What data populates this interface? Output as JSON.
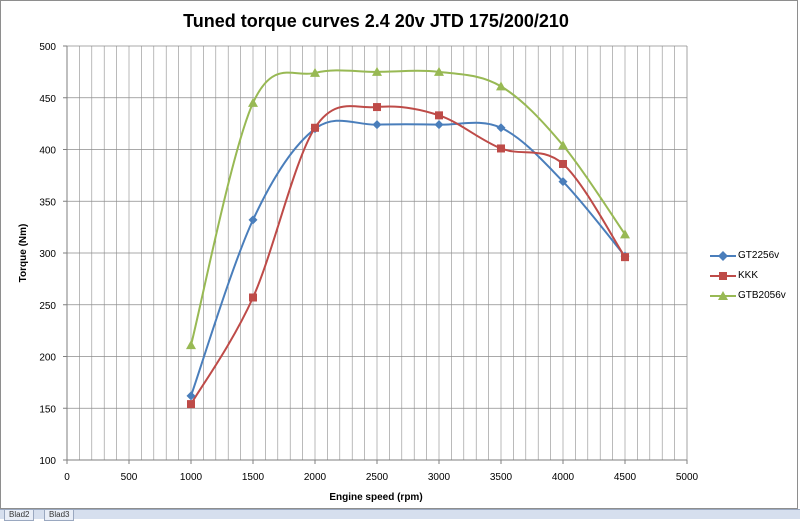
{
  "chart_data": {
    "type": "line",
    "title": "Tuned torque curves 2.4 20v JTD 175/200/210",
    "xlabel": "Engine speed (rpm)",
    "ylabel": "Torque (Nm)",
    "xlim": [
      0,
      5000
    ],
    "ylim": [
      100,
      500
    ],
    "x_ticks": [
      0,
      500,
      1000,
      1500,
      2000,
      2500,
      3000,
      3500,
      4000,
      4500,
      5000
    ],
    "y_ticks": [
      100,
      150,
      200,
      250,
      300,
      350,
      400,
      450,
      500
    ],
    "grid": true,
    "legend_position": "right",
    "series": [
      {
        "name": "GT2256v",
        "color": "#4a7ebb",
        "marker": "diamond",
        "x": [
          1000,
          1500,
          2000,
          2500,
          3000,
          3500,
          4000,
          4500
        ],
        "y": [
          162,
          332,
          420,
          424,
          424,
          421,
          369,
          297
        ]
      },
      {
        "name": "KKK",
        "color": "#be4b48",
        "marker": "square",
        "x": [
          1000,
          1500,
          2000,
          2500,
          3000,
          3500,
          4000,
          4500
        ],
        "y": [
          154,
          257,
          421,
          441,
          433,
          401,
          386,
          296
        ]
      },
      {
        "name": "GTB2056v",
        "color": "#98b954",
        "marker": "triangle",
        "x": [
          1000,
          1500,
          2000,
          2500,
          3000,
          3500,
          4000,
          4500
        ],
        "y": [
          211,
          445,
          474,
          475,
          475,
          461,
          404,
          318
        ]
      }
    ]
  },
  "sheet_tabs": [
    "Blad2",
    "Blad3"
  ]
}
